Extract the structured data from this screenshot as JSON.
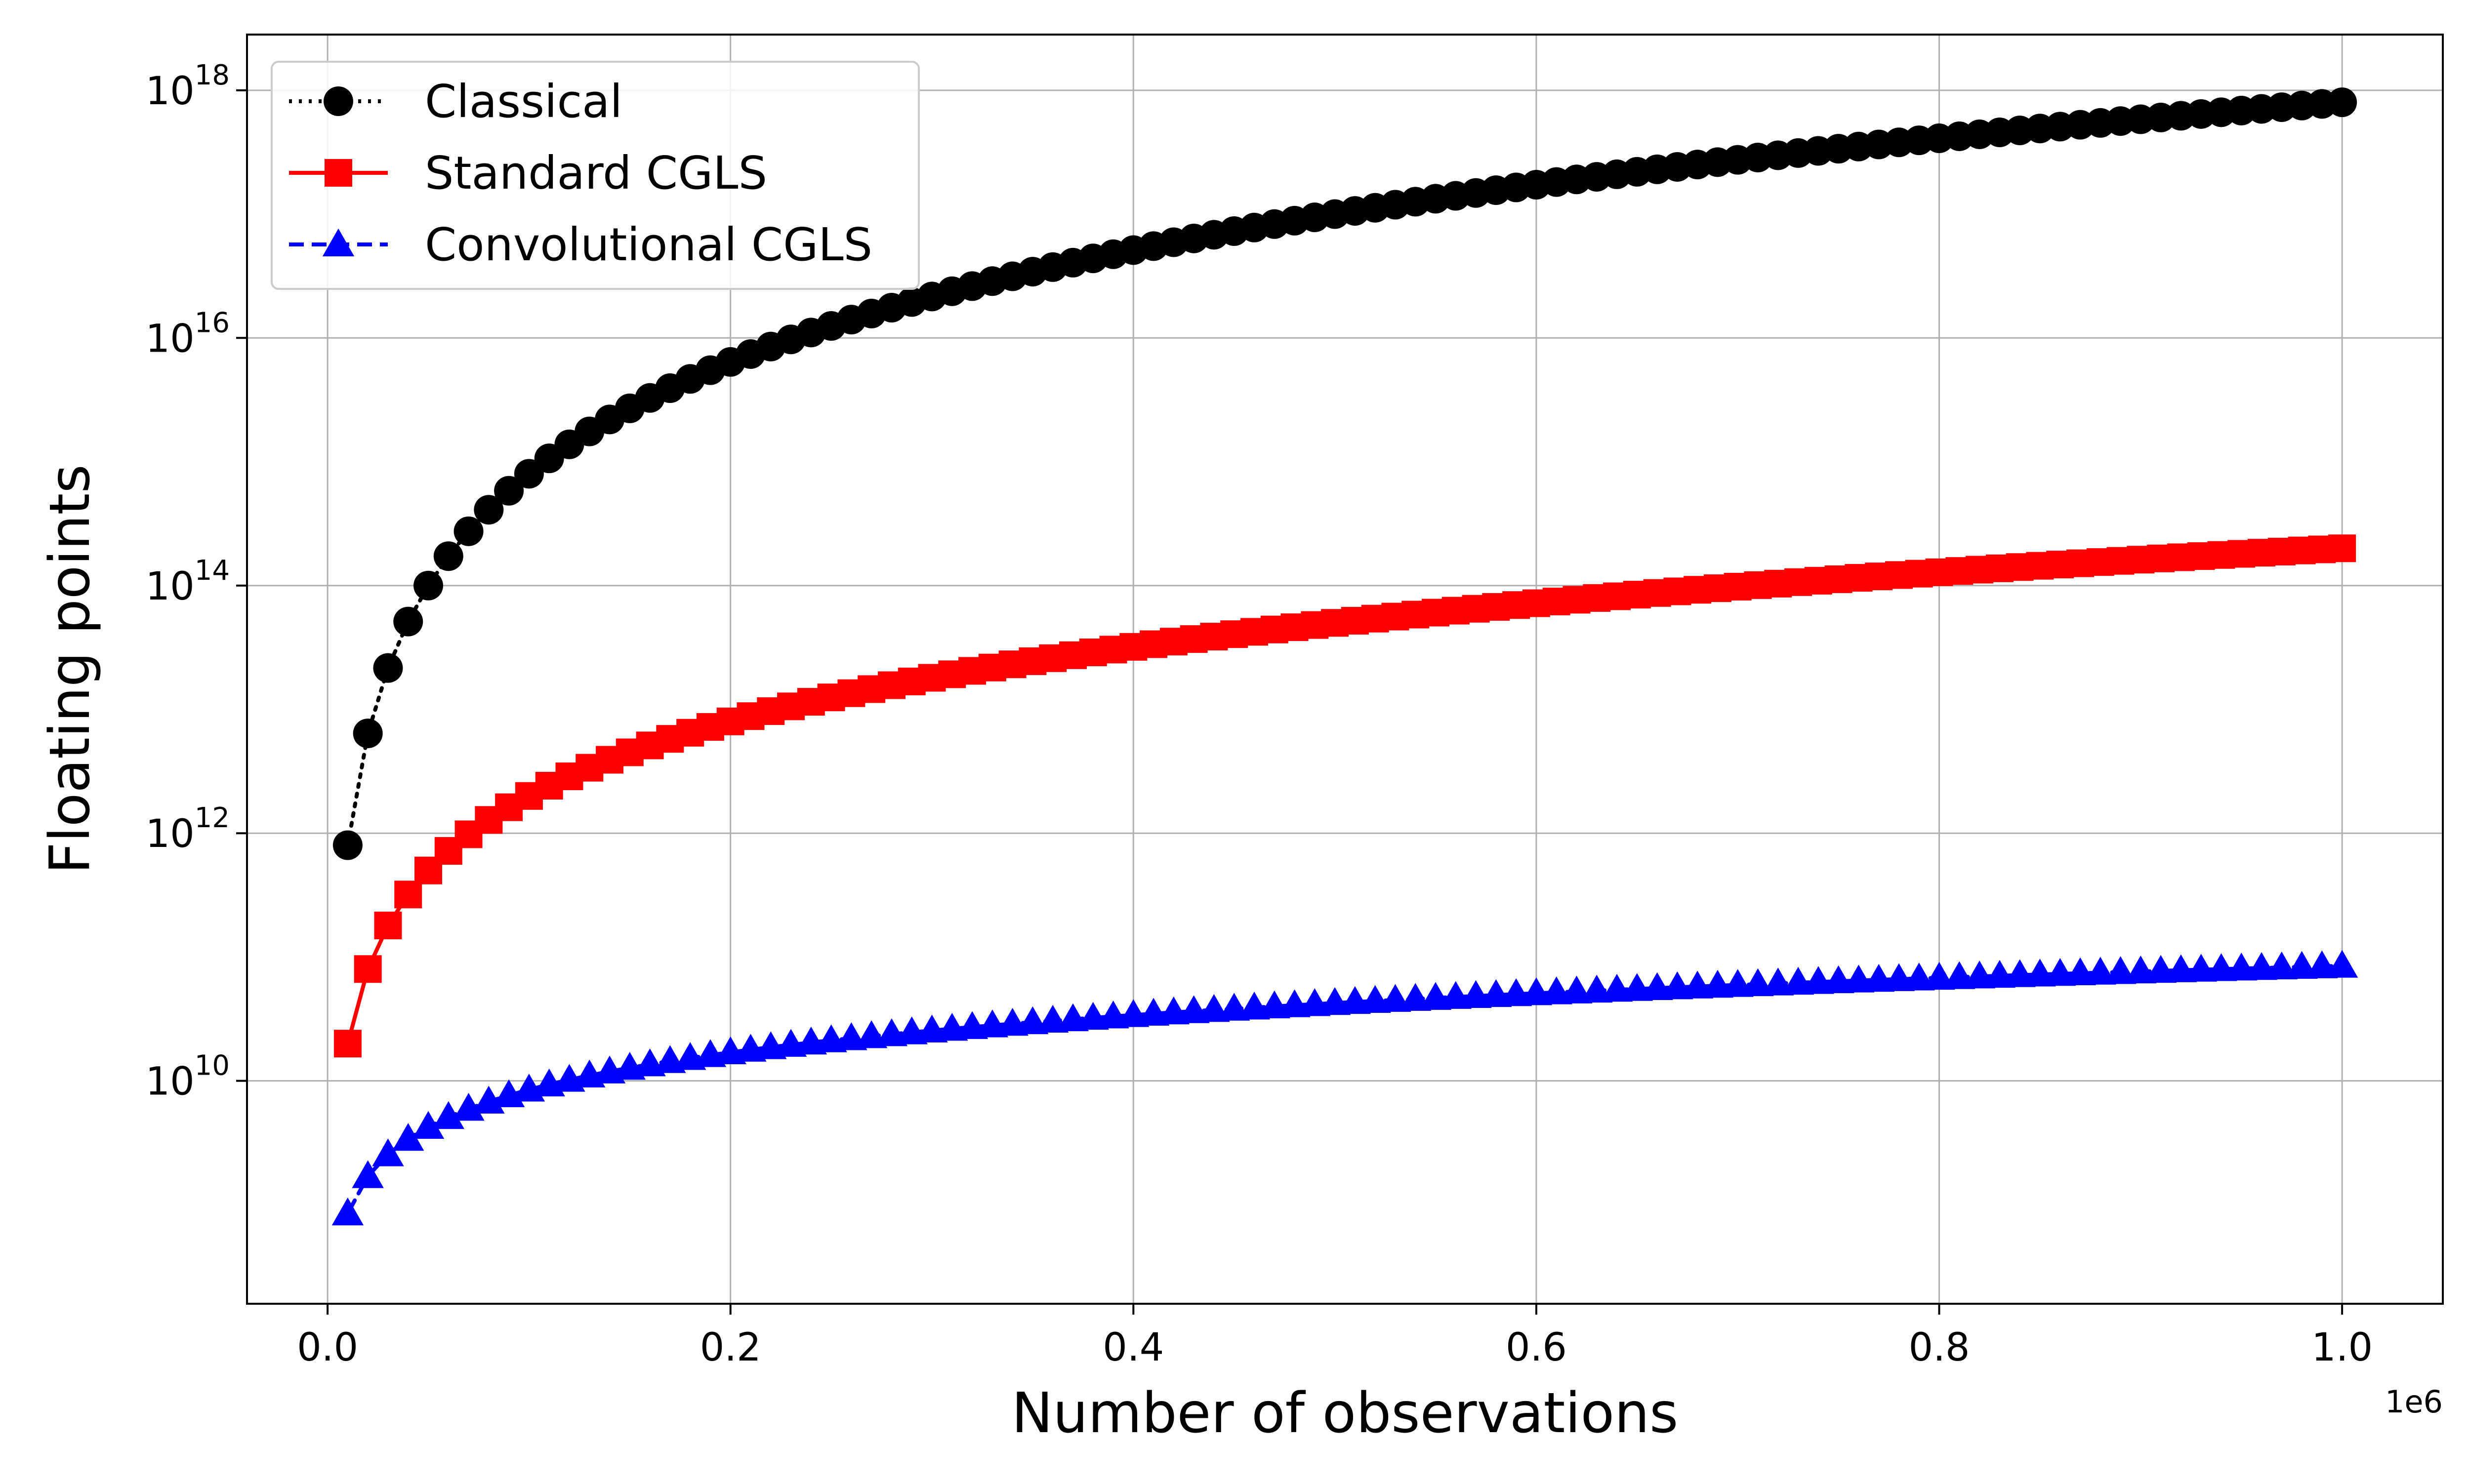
{
  "chart_data": {
    "type": "line",
    "xlabel": "Number of observations",
    "ylabel": "Floating points",
    "x_offset_text": "1e6",
    "x_scale": "linear",
    "y_scale": "log",
    "xlim": [
      -0.04,
      1.05
    ],
    "ylim_log10": [
      8.2,
      18.45
    ],
    "grid": true,
    "legend_position": "upper-left",
    "x_ticks": [
      {
        "value": 0.0,
        "label": "0.0"
      },
      {
        "value": 0.2,
        "label": "0.2"
      },
      {
        "value": 0.4,
        "label": "0.4"
      },
      {
        "value": 0.6,
        "label": "0.6"
      },
      {
        "value": 0.8,
        "label": "0.8"
      },
      {
        "value": 1.0,
        "label": "1.0"
      }
    ],
    "y_ticks": [
      {
        "exponent": 10,
        "base": "10",
        "sup": "10"
      },
      {
        "exponent": 12,
        "base": "10",
        "sup": "12"
      },
      {
        "exponent": 14,
        "base": "10",
        "sup": "14"
      },
      {
        "exponent": 16,
        "base": "10",
        "sup": "16"
      },
      {
        "exponent": 18,
        "base": "10",
        "sup": "18"
      }
    ],
    "x_sampling": {
      "start": 0.01,
      "step": 0.01,
      "count": 100,
      "unit": "1e6 observations"
    },
    "series": [
      {
        "name": "Classical",
        "color": "#000000",
        "line_style": "dotted",
        "marker": "circle",
        "y_model": "8e17 * (x/1.0)^3",
        "log10_y_at_x_0.01": 11.9,
        "log10_y_at_x_1.0": 17.9
      },
      {
        "name": "Standard CGLS",
        "color": "#ff0000",
        "line_style": "solid",
        "marker": "square",
        "y_model": "2e14 * (x/1.0)^2",
        "log10_y_at_x_0.01": 10.3,
        "log10_y_at_x_1.0": 14.3
      },
      {
        "name": "Convolutional CGLS",
        "color": "#0000ff",
        "line_style": "dashed",
        "marker": "triangle",
        "y_model": "8.5e10 * (x/1.0)",
        "log10_y_at_x_0.01": 8.93,
        "log10_y_at_x_1.0": 10.93
      }
    ]
  }
}
